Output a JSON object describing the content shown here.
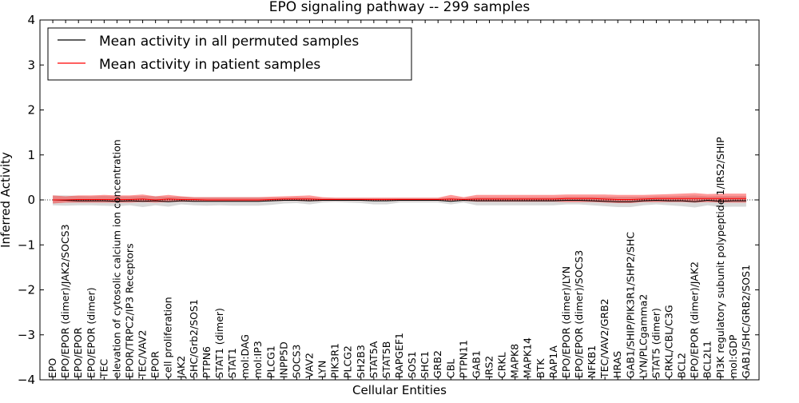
{
  "chart_data": {
    "type": "line",
    "title": "EPO signaling pathway -- 299 samples",
    "xlabel": "Cellular Entities",
    "ylabel": "Inferred Activity",
    "ylim": [
      -4,
      4
    ],
    "yticks": [
      -4,
      -3,
      -2,
      -1,
      0,
      1,
      2,
      3,
      4
    ],
    "ytick_labels": [
      "−4",
      "−3",
      "−2",
      "−1",
      "0",
      "1",
      "2",
      "3",
      "4"
    ],
    "grid": false,
    "legend_position": "top-left",
    "reference_line": 0,
    "categories": [
      "EPO",
      "EPO/EPOR (dimer)/JAK2/SOCS3",
      "EPO/EPOR",
      "EPO/EPOR (dimer)",
      "TEC",
      "elevation of cytosolic calcium ion concentration",
      "EPOR/TRPC2/IP3 Receptors",
      "TEC/VAV2",
      "EPOR",
      "cell proliferation",
      "JAK2",
      "SHC/Grb2/SOS1",
      "PTPN6",
      "STAT1 (dimer)",
      "STAT1",
      "mol:DAG",
      "mol:IP3",
      "PLCG1",
      "INPP5D",
      "SOCS3",
      "VAV2",
      "LYN",
      "PIK3R1",
      "PLCG2",
      "SH2B3",
      "STAT5A",
      "STAT5B",
      "RAPGEF1",
      "SOS1",
      "SHC1",
      "GRB2",
      "CBL",
      "PTPN11",
      "GAB1",
      "IRS2",
      "CRKL",
      "MAPK8",
      "MAPK14",
      "BTK",
      "RAP1A",
      "EPO/EPOR (dimer)/LYN",
      "EPO/EPOR (dimer)/SOCS3",
      "NFKB1",
      "TEC/VAV2/GRB2",
      "HRAS",
      "GAB1/SHIP/PIK3R1/SHP2/SHC",
      "LYN/PLCgamma2",
      "STAT5 (dimer)",
      "CRKL/CBL/C3G",
      "BCL2",
      "EPO/EPOR (dimer)/JAK2",
      "BCL2L1",
      "PI3K regulatory subunit polypeptide 1/IRS2/SHIP",
      "mol:GDP",
      "GAB1/SHC/GRB2/SOS1"
    ],
    "series": [
      {
        "name": "Mean activity in all permuted samples",
        "color": "#000000",
        "values": [
          0.0,
          -0.01,
          -0.02,
          -0.02,
          -0.02,
          -0.03,
          -0.02,
          -0.03,
          -0.02,
          -0.04,
          -0.02,
          -0.03,
          -0.03,
          -0.03,
          -0.03,
          -0.03,
          -0.03,
          -0.02,
          -0.01,
          -0.01,
          -0.02,
          -0.01,
          -0.01,
          -0.01,
          -0.01,
          -0.02,
          -0.02,
          -0.01,
          -0.01,
          -0.01,
          -0.01,
          -0.03,
          -0.01,
          -0.02,
          -0.02,
          -0.02,
          -0.02,
          -0.02,
          -0.02,
          -0.02,
          -0.01,
          -0.01,
          -0.02,
          -0.03,
          -0.04,
          -0.04,
          -0.02,
          -0.01,
          -0.02,
          -0.02,
          -0.04,
          -0.01,
          -0.03,
          -0.02,
          -0.02
        ],
        "band_low": [
          -0.12,
          -0.13,
          -0.12,
          -0.12,
          -0.13,
          -0.14,
          -0.12,
          -0.16,
          -0.12,
          -0.15,
          -0.1,
          -0.12,
          -0.13,
          -0.12,
          -0.13,
          -0.13,
          -0.13,
          -0.11,
          -0.08,
          -0.07,
          -0.1,
          -0.06,
          -0.05,
          -0.06,
          -0.07,
          -0.1,
          -0.1,
          -0.06,
          -0.06,
          -0.06,
          -0.06,
          -0.1,
          -0.06,
          -0.12,
          -0.12,
          -0.12,
          -0.12,
          -0.12,
          -0.12,
          -0.12,
          -0.1,
          -0.1,
          -0.12,
          -0.14,
          -0.16,
          -0.16,
          -0.12,
          -0.1,
          -0.12,
          -0.14,
          -0.17,
          -0.12,
          -0.16,
          -0.15,
          -0.15
        ],
        "band_high": [
          0.1,
          0.1,
          0.09,
          0.08,
          0.09,
          0.08,
          0.08,
          0.09,
          0.08,
          0.07,
          0.07,
          0.06,
          0.06,
          0.06,
          0.06,
          0.06,
          0.06,
          0.05,
          0.05,
          0.06,
          0.05,
          0.04,
          0.04,
          0.04,
          0.04,
          0.04,
          0.04,
          0.04,
          0.04,
          0.04,
          0.04,
          0.05,
          0.04,
          0.06,
          0.06,
          0.06,
          0.06,
          0.06,
          0.06,
          0.06,
          0.07,
          0.07,
          0.07,
          0.07,
          0.07,
          0.07,
          0.07,
          0.08,
          0.08,
          0.09,
          0.1,
          0.08,
          0.09,
          0.09,
          0.09
        ]
      },
      {
        "name": "Mean activity in patient samples",
        "color": "#ff0000",
        "values": [
          0.0,
          0.0,
          0.01,
          0.01,
          0.01,
          0.01,
          0.01,
          0.02,
          0.0,
          0.02,
          0.01,
          0.01,
          0.0,
          0.0,
          0.0,
          0.0,
          0.0,
          0.01,
          0.02,
          0.02,
          0.02,
          0.01,
          0.01,
          0.01,
          0.01,
          0.01,
          0.01,
          0.01,
          0.01,
          0.01,
          0.01,
          0.02,
          0.01,
          0.02,
          0.02,
          0.02,
          0.02,
          0.02,
          0.02,
          0.02,
          0.03,
          0.03,
          0.03,
          0.02,
          0.01,
          0.01,
          0.02,
          0.03,
          0.03,
          0.03,
          0.03,
          0.03,
          0.03,
          0.03,
          0.03
        ],
        "band_low": [
          -0.08,
          -0.06,
          -0.06,
          -0.06,
          -0.06,
          -0.06,
          -0.06,
          -0.05,
          -0.06,
          -0.05,
          -0.04,
          -0.04,
          -0.04,
          -0.04,
          -0.04,
          -0.04,
          -0.04,
          -0.03,
          -0.02,
          -0.02,
          -0.03,
          -0.02,
          -0.02,
          -0.02,
          -0.02,
          -0.02,
          -0.02,
          -0.02,
          -0.02,
          -0.02,
          -0.02,
          -0.03,
          -0.02,
          -0.04,
          -0.04,
          -0.04,
          -0.04,
          -0.04,
          -0.04,
          -0.04,
          -0.05,
          -0.05,
          -0.05,
          -0.06,
          -0.07,
          -0.07,
          -0.05,
          -0.05,
          -0.05,
          -0.05,
          -0.06,
          -0.05,
          -0.06,
          -0.06,
          -0.06
        ],
        "band_high": [
          0.1,
          0.08,
          0.1,
          0.1,
          0.11,
          0.1,
          0.1,
          0.12,
          0.08,
          0.11,
          0.08,
          0.06,
          0.06,
          0.06,
          0.06,
          0.06,
          0.06,
          0.07,
          0.08,
          0.09,
          0.1,
          0.06,
          0.05,
          0.05,
          0.05,
          0.05,
          0.05,
          0.05,
          0.05,
          0.05,
          0.05,
          0.11,
          0.06,
          0.11,
          0.11,
          0.11,
          0.11,
          0.11,
          0.11,
          0.11,
          0.12,
          0.12,
          0.12,
          0.12,
          0.11,
          0.11,
          0.11,
          0.12,
          0.13,
          0.14,
          0.15,
          0.13,
          0.14,
          0.14,
          0.14
        ]
      }
    ]
  }
}
